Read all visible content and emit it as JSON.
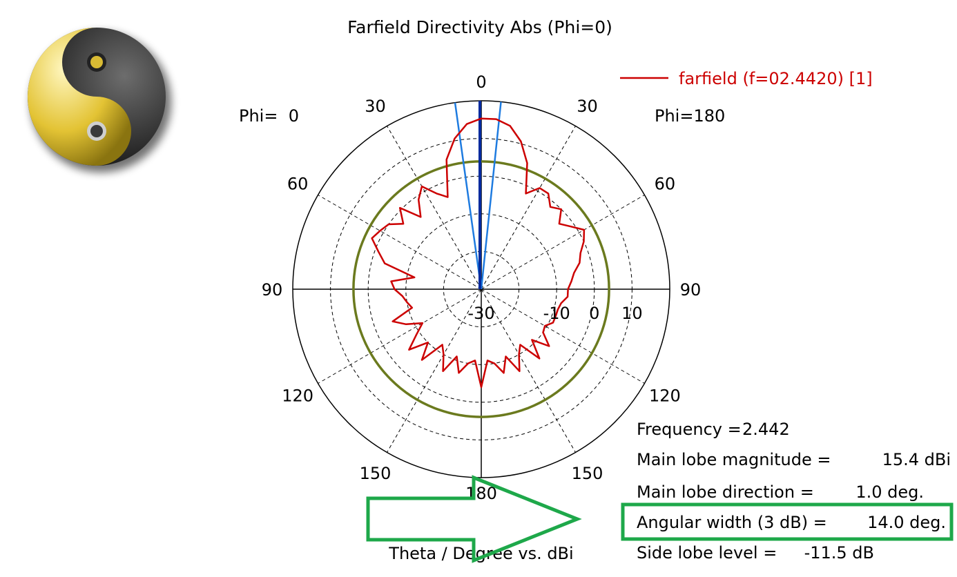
{
  "chart_data": {
    "type": "polar-line",
    "title": "Farfield Directivity Abs (Phi=0)",
    "xlabel": "Theta / Degree vs. dBi",
    "phi_left_label": "Phi=  0",
    "phi_right_label": "Phi=180",
    "angle_ticks": [
      {
        "label": "0",
        "theta": 0
      },
      {
        "label": "30",
        "theta": -30
      },
      {
        "label": "30",
        "theta": 30
      },
      {
        "label": "60",
        "theta": -60
      },
      {
        "label": "60",
        "theta": 60
      },
      {
        "label": "90",
        "theta": -90
      },
      {
        "label": "90",
        "theta": 90
      },
      {
        "label": "120",
        "theta": -120
      },
      {
        "label": "120",
        "theta": 120
      },
      {
        "label": "150",
        "theta": -150
      },
      {
        "label": "150",
        "theta": 150
      },
      {
        "label": "180",
        "theta": 180
      }
    ],
    "radial_range": [
      -30,
      20
    ],
    "radial_ticks": [
      {
        "label": "-30",
        "value": -30
      },
      {
        "label": "-10",
        "value": -10
      },
      {
        "label": "0",
        "value": 0
      },
      {
        "label": "10",
        "value": 10
      }
    ],
    "grid_dashed_values": [
      -20,
      -10,
      0,
      10
    ],
    "legend": {
      "text": "farfield (f=02.4420) [1]",
      "color": "#cc0000",
      "position": "top-right"
    },
    "series": [
      {
        "name": "farfield (f=02.4420) [1]",
        "color": "#cc0000",
        "theta_deg": [
          0,
          5,
          10,
          15,
          20,
          25,
          30,
          35,
          40,
          45,
          50,
          55,
          60,
          65,
          70,
          75,
          80,
          85,
          90,
          95,
          100,
          105,
          110,
          115,
          120,
          125,
          130,
          135,
          140,
          145,
          150,
          155,
          160,
          165,
          170,
          175,
          180,
          185,
          190,
          195,
          200,
          205,
          210,
          215,
          220,
          225,
          230,
          235,
          240,
          245,
          250,
          255,
          260,
          265,
          270,
          275,
          280,
          285,
          290,
          295,
          300,
          305,
          310,
          315,
          320,
          325,
          330,
          335,
          340,
          345,
          350,
          355
        ],
        "directivity_dBi": [
          15.3,
          14.0,
          10.6,
          5.6,
          -4.0,
          -2.0,
          1.5,
          -1.0,
          -5.0,
          0.5,
          -3.0,
          0.0,
          1.0,
          2.0,
          -1.0,
          -3.5,
          -12.0,
          -6.0,
          -7.0,
          -9.0,
          -10.0,
          -11.0,
          -5.0,
          -8.0,
          -12.0,
          -9.0,
          -5.0,
          -10.0,
          -5.5,
          -12.0,
          -10.0,
          -6.0,
          -11.0,
          -7.0,
          -10.0,
          -11.0,
          -4.0,
          -11.0,
          -10.0,
          -7.0,
          -11.0,
          -6.0,
          -10.0,
          -12.0,
          -6.0,
          -11.0,
          -6.5,
          -10.0,
          -10.5,
          -9.0,
          -9.0,
          -9.0,
          -8.5,
          -7.0,
          -7.0,
          -6.0,
          -5.0,
          -3.0,
          -2.0,
          0.0,
          1.5,
          -1.0,
          -3.0,
          0.0,
          -1.5,
          1.0,
          1.0,
          -2.0,
          5.6,
          10.6,
          14.0,
          15.3
        ]
      }
    ],
    "annotations": {
      "main_lobe_direction_deg": 1.0,
      "main_lobe_color": "#002a9e",
      "beamwidth_3dB_deg": 14.0,
      "beamwidth_color": "#1e7be0",
      "side_lobe_level_circle_dBi": 3.9,
      "side_lobe_circle_color": "#6b7a1e"
    },
    "info": [
      {
        "label": "Frequency =",
        "value": "2.442"
      },
      {
        "label": "Main lobe magnitude =",
        "value": "15.4 dBi"
      },
      {
        "label": "Main lobe direction =",
        "value": "1.0 deg."
      },
      {
        "label": "Angular width (3 dB) =",
        "value": "14.0 deg."
      },
      {
        "label": "Side lobe level =",
        "value": "-11.5 dB"
      }
    ],
    "highlight": {
      "color": "#1ea84a",
      "target": "Angular width (3 dB)"
    }
  },
  "logo": {
    "name": "yin-yang logo",
    "colors": [
      "#e8c52a",
      "#1a1a1a",
      "#ffffff"
    ]
  }
}
